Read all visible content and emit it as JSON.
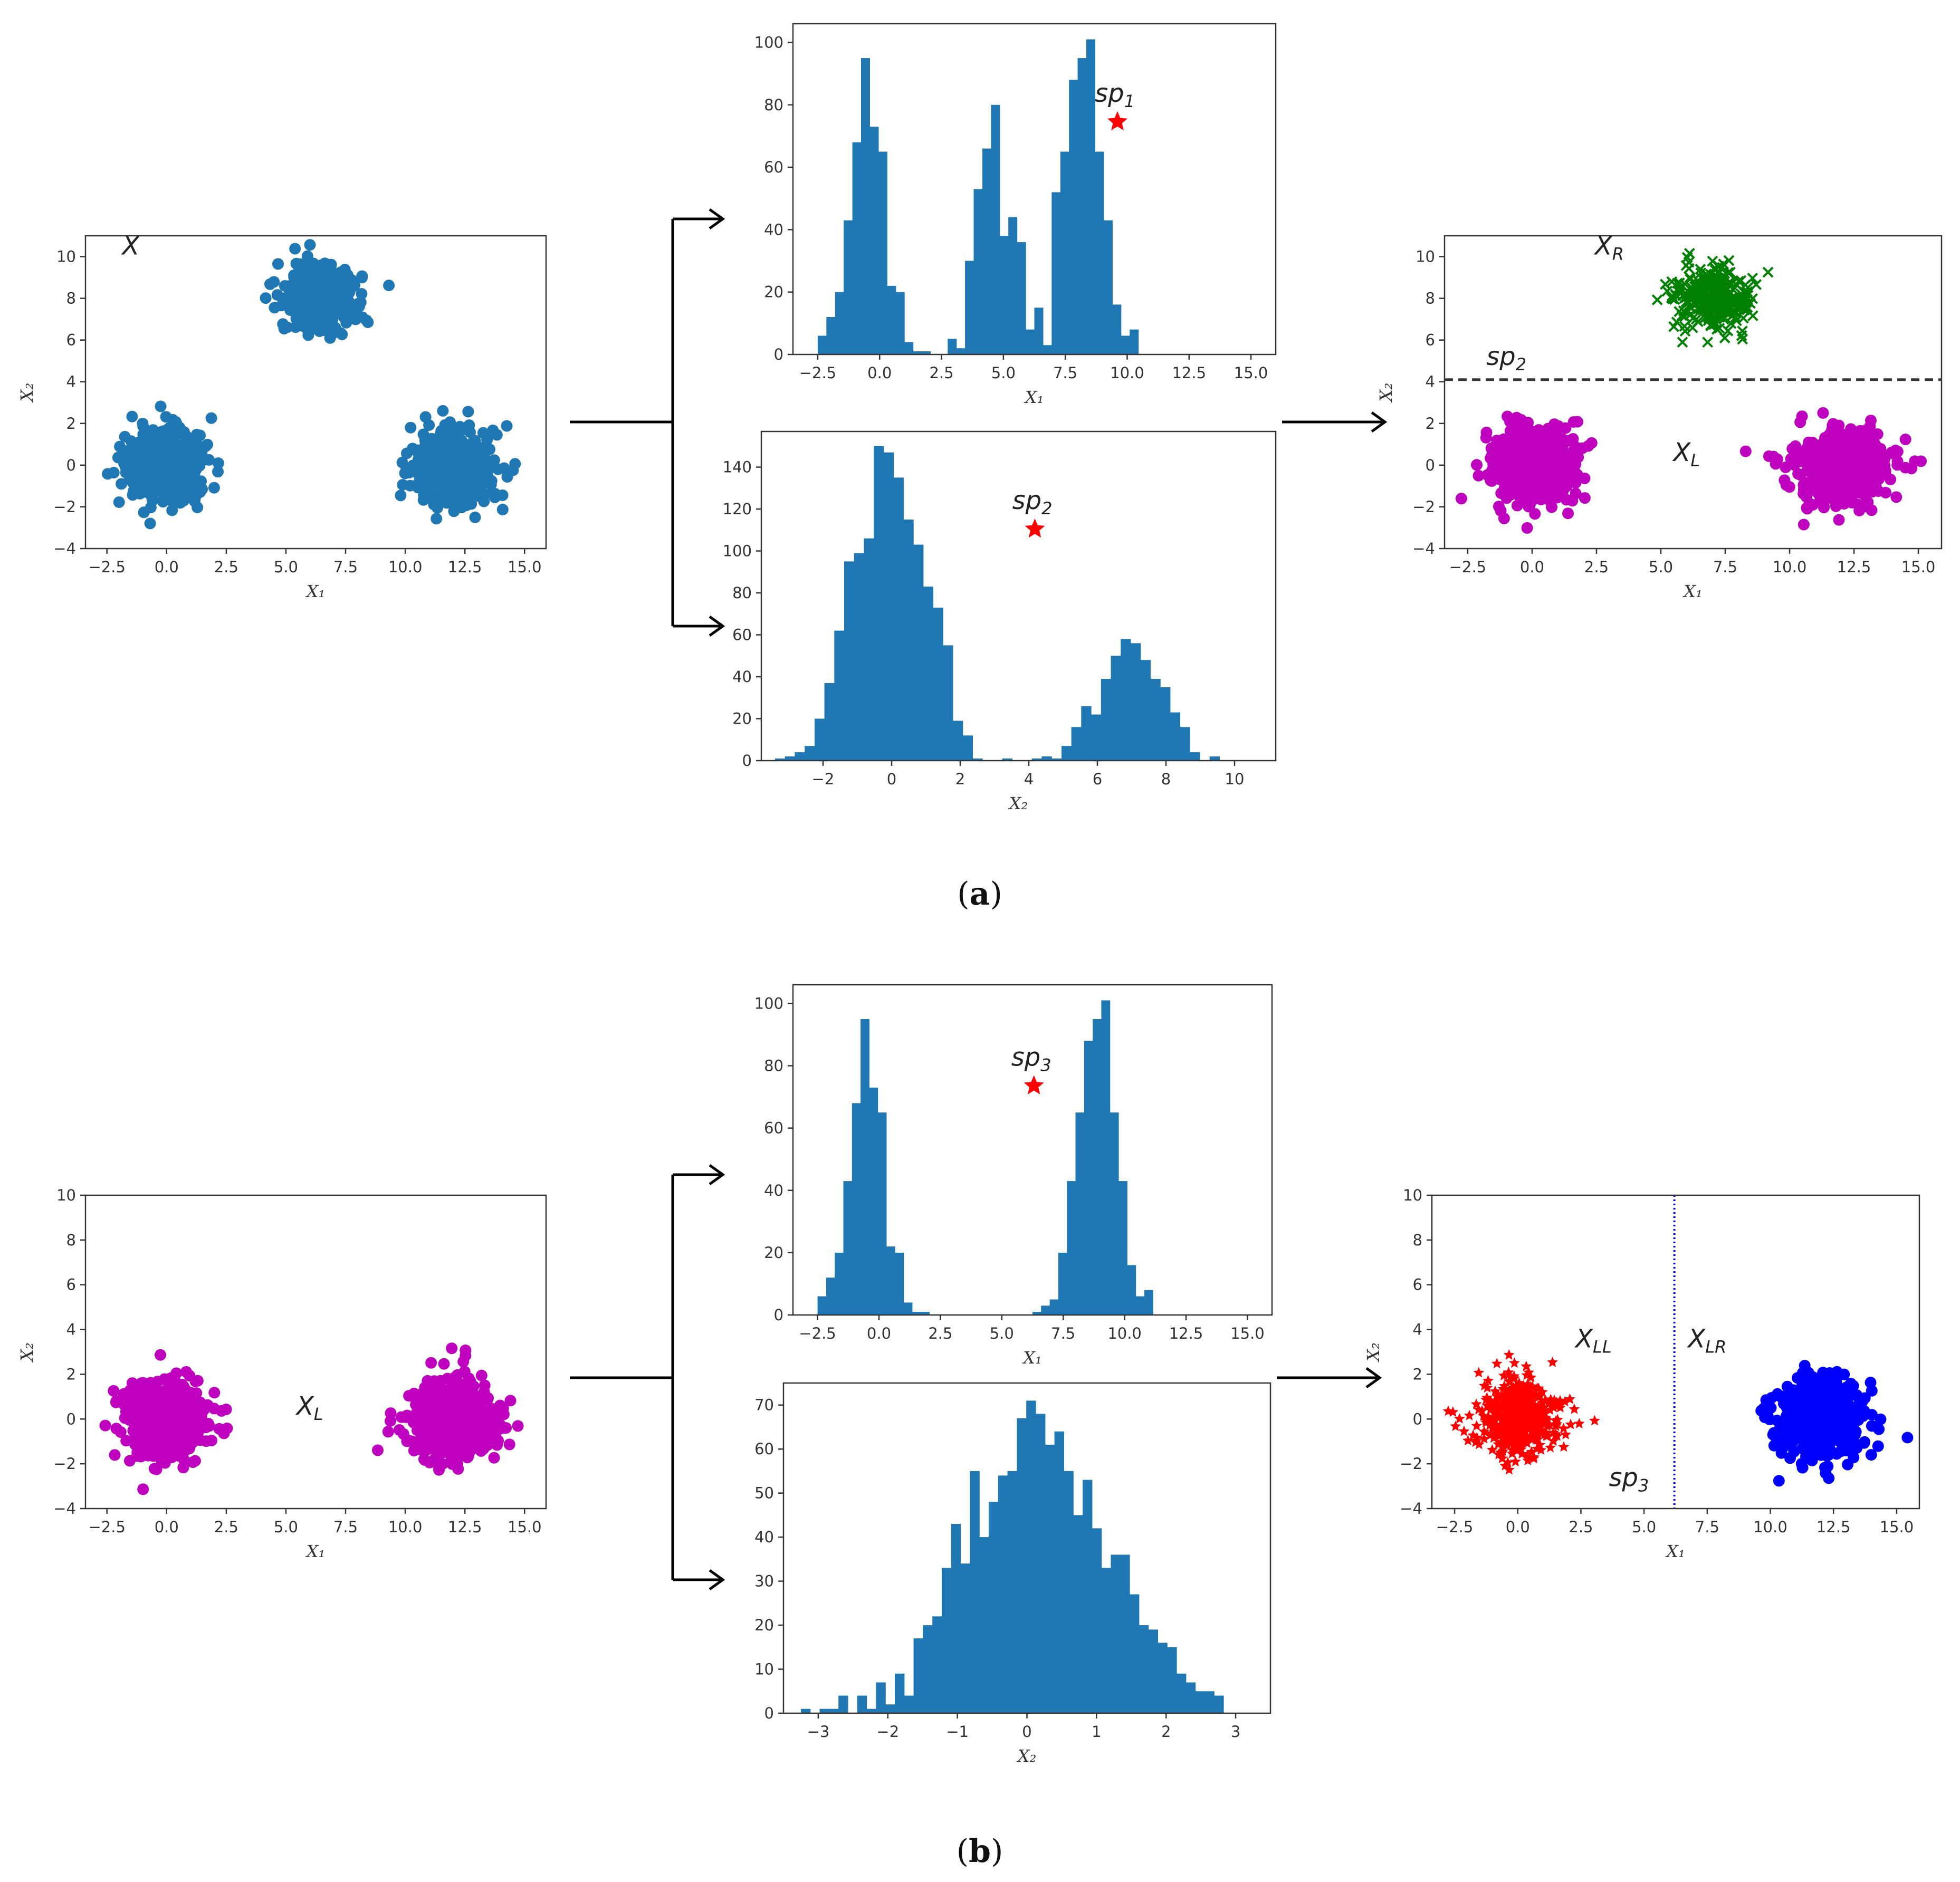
{
  "figure": {
    "caption_a": "a",
    "caption_b": "b"
  },
  "colors": {
    "hist": "#1f77b4",
    "scatter_blue": "#1f77b4",
    "magenta": "#bf00bf",
    "green": "#008000",
    "red": "#ff0000",
    "blue": "#0000ff",
    "star": "#ff0000"
  },
  "chart_data": [
    {
      "id": "a1-scatter",
      "type": "scatter",
      "panel": "a",
      "title": "",
      "xlabel": "X₁",
      "ylabel": "X₂",
      "xlim": [
        -3.4,
        15.9
      ],
      "ylim": [
        -4,
        11
      ],
      "xticks": [
        -2.5,
        0.0,
        2.5,
        5.0,
        7.5,
        10.0,
        12.5,
        15.0
      ],
      "yticks": [
        -4,
        -2,
        0,
        2,
        4,
        6,
        8,
        10
      ],
      "annotations": [
        {
          "text": "X",
          "sub": "",
          "x": -1.5,
          "y": 10.1
        }
      ],
      "series": [
        {
          "marker": "circle",
          "color": "#1f77b4",
          "clusters": [
            {
              "cx": 0.0,
              "cy": 0.0,
              "spread": 0.85,
              "n": 500
            },
            {
              "cx": 6.5,
              "cy": 8.0,
              "spread": 0.75,
              "n": 400
            },
            {
              "cx": 12.0,
              "cy": 0.0,
              "spread": 0.9,
              "n": 500
            }
          ]
        }
      ]
    },
    {
      "id": "a2-hist-x1",
      "type": "bar",
      "panel": "a",
      "title": "",
      "xlabel": "X₁",
      "ylabel": "",
      "xlim": [
        -3.5,
        16.0
      ],
      "ylim": [
        0,
        106
      ],
      "xticks": [
        -2.5,
        0.0,
        2.5,
        5.0,
        7.5,
        10.0,
        12.5,
        15.0
      ],
      "yticks": [
        0,
        20,
        40,
        60,
        80,
        100
      ],
      "bin_start": -2.5,
      "bin_width": 0.35,
      "values": [
        6,
        12,
        20,
        43,
        68,
        95,
        73,
        65,
        22,
        20,
        4,
        1,
        1,
        0,
        0,
        5,
        2,
        30,
        53,
        66,
        80,
        38,
        44,
        36,
        8,
        15,
        3,
        52,
        65,
        88,
        95,
        101,
        65,
        43,
        16,
        6,
        8
      ],
      "annotations": [
        {
          "text": "sp",
          "sub": "1",
          "x": 9.5,
          "y": 81,
          "marker": "star"
        }
      ]
    },
    {
      "id": "a3-hist-x2",
      "type": "bar",
      "panel": "a",
      "title": "",
      "xlabel": "X₂",
      "ylabel": "",
      "xlim": [
        -3.8,
        11.2
      ],
      "ylim": [
        0,
        157
      ],
      "xticks": [
        -2,
        0,
        2,
        4,
        6,
        8,
        10
      ],
      "yticks": [
        0,
        20,
        40,
        60,
        80,
        100,
        120,
        140
      ],
      "bin_start": -3.4,
      "bin_width": 0.288,
      "values": [
        1,
        2,
        4,
        7,
        20,
        37,
        62,
        95,
        99,
        106,
        150,
        147,
        135,
        115,
        103,
        83,
        73,
        55,
        19,
        12,
        1,
        0,
        0,
        1,
        0,
        0,
        1,
        2,
        1,
        7,
        16,
        26,
        22,
        39,
        50,
        58,
        56,
        48,
        39,
        35,
        23,
        16,
        4,
        0,
        2
      ],
      "annotations": [
        {
          "text": "sp",
          "sub": "2",
          "x": 4.1,
          "y": 120,
          "marker": "star"
        }
      ]
    },
    {
      "id": "a4-scatter-split",
      "type": "scatter",
      "panel": "a",
      "title": "",
      "xlabel": "X₁",
      "ylabel": "X₂",
      "xlim": [
        -3.4,
        15.9
      ],
      "ylim": [
        -4,
        11
      ],
      "xticks": [
        -2.5,
        0.0,
        2.5,
        5.0,
        7.5,
        10.0,
        12.5,
        15.0
      ],
      "yticks": [
        -4,
        -2,
        0,
        2,
        4,
        6,
        8,
        10
      ],
      "split": {
        "orientation": "horizontal",
        "value": 4.1,
        "style": "dashed",
        "color": "#333"
      },
      "annotations": [
        {
          "text": "X",
          "sub": "R",
          "x": 3.0,
          "y": 10.1
        },
        {
          "text": "sp",
          "sub": "2",
          "x": -1.0,
          "y": 4.8
        },
        {
          "text": "X",
          "sub": "L",
          "x": 6.0,
          "y": 0.2
        }
      ],
      "series": [
        {
          "name": "",
          "marker": "x",
          "color": "#008000",
          "clusters": [
            {
              "cx": 7.0,
              "cy": 8.0,
              "spread": 0.75,
              "n": 300
            }
          ]
        },
        {
          "name": "",
          "marker": "circle",
          "color": "#bf00bf",
          "clusters": [
            {
              "cx": 0.0,
              "cy": 0.0,
              "spread": 0.85,
              "n": 500
            },
            {
              "cx": 12.0,
              "cy": 0.0,
              "spread": 0.9,
              "n": 500
            }
          ]
        }
      ]
    },
    {
      "id": "b1-scatter",
      "type": "scatter",
      "panel": "b",
      "title": "",
      "xlabel": "X₁",
      "ylabel": "X₂",
      "xlim": [
        -3.4,
        15.9
      ],
      "ylim": [
        -4,
        10
      ],
      "xticks": [
        -2.5,
        0.0,
        2.5,
        5.0,
        7.5,
        10.0,
        12.5,
        15.0
      ],
      "yticks": [
        -4,
        -2,
        0,
        2,
        4,
        6,
        8,
        10
      ],
      "annotations": [
        {
          "text": "X",
          "sub": "L",
          "x": 6.0,
          "y": 0.2
        }
      ],
      "series": [
        {
          "marker": "circle",
          "color": "#bf00bf",
          "clusters": [
            {
              "cx": 0.0,
              "cy": 0.0,
              "spread": 0.85,
              "n": 500
            },
            {
              "cx": 12.0,
              "cy": 0.0,
              "spread": 0.9,
              "n": 500
            }
          ]
        }
      ]
    },
    {
      "id": "b2-hist-x1",
      "type": "bar",
      "panel": "b",
      "title": "",
      "xlabel": "X₁",
      "ylabel": "",
      "xlim": [
        -3.5,
        16.0
      ],
      "ylim": [
        0,
        106
      ],
      "xticks": [
        -2.5,
        0.0,
        2.5,
        5.0,
        7.5,
        10.0,
        12.5,
        15.0
      ],
      "yticks": [
        0,
        20,
        40,
        60,
        80,
        100
      ],
      "bin_start": -2.5,
      "bin_width": 0.35,
      "values": [
        6,
        12,
        20,
        43,
        68,
        95,
        73,
        65,
        22,
        20,
        4,
        1,
        1,
        0,
        0,
        0,
        0,
        0,
        0,
        0,
        0,
        0,
        0,
        0,
        0,
        1,
        3,
        5,
        20,
        43,
        65,
        88,
        95,
        101,
        65,
        43,
        16,
        6,
        8
      ],
      "annotations": [
        {
          "text": "sp",
          "sub": "3",
          "x": 6.2,
          "y": 80,
          "marker": "star"
        }
      ]
    },
    {
      "id": "b3-hist-x2",
      "type": "bar",
      "panel": "b",
      "title": "",
      "xlabel": "X₂",
      "ylabel": "",
      "xlim": [
        -3.5,
        3.5
      ],
      "ylim": [
        0,
        75
      ],
      "xticks": [
        -3,
        -2,
        -1,
        0,
        1,
        2,
        3
      ],
      "yticks": [
        0,
        10,
        20,
        30,
        40,
        50,
        60,
        70
      ],
      "bin_start": -3.25,
      "bin_width": 0.135,
      "values": [
        1,
        0,
        1,
        1,
        4,
        0,
        4,
        1,
        7,
        2,
        9,
        4,
        17,
        20,
        22,
        33,
        43,
        34,
        55,
        40,
        48,
        54,
        55,
        67,
        71,
        68,
        61,
        64,
        55,
        45,
        53,
        42,
        33,
        36,
        36,
        27,
        20,
        19,
        16,
        15,
        9,
        7,
        5,
        5,
        4,
        0,
        0,
        0,
        0,
        0,
        0,
        1
      ],
      "annotations": []
    },
    {
      "id": "b4-scatter-split",
      "type": "scatter",
      "panel": "b",
      "title": "",
      "xlabel": "X₁",
      "ylabel": "X₂",
      "xlim": [
        -3.4,
        15.9
      ],
      "ylim": [
        -4,
        10
      ],
      "xticks": [
        -2.5,
        0.0,
        2.5,
        5.0,
        7.5,
        10.0,
        12.5,
        15.0
      ],
      "yticks": [
        -4,
        -2,
        0,
        2,
        4,
        6,
        8,
        10
      ],
      "split": {
        "orientation": "vertical",
        "value": 6.2,
        "style": "dotted",
        "color": "#0000ff"
      },
      "annotations": [
        {
          "text": "X",
          "sub": "LL",
          "x": 3.0,
          "y": 3.2
        },
        {
          "text": "X",
          "sub": "LR",
          "x": 7.5,
          "y": 3.2
        },
        {
          "text": "sp",
          "sub": "3",
          "x": 4.4,
          "y": -3.0
        }
      ],
      "series": [
        {
          "name": "",
          "marker": "star",
          "color": "#ff0000",
          "clusters": [
            {
              "cx": 0.0,
              "cy": 0.0,
              "spread": 0.85,
              "n": 450
            }
          ]
        },
        {
          "name": "",
          "marker": "circle",
          "color": "#0000ff",
          "clusters": [
            {
              "cx": 12.0,
              "cy": 0.0,
              "spread": 0.9,
              "n": 500
            }
          ]
        }
      ]
    }
  ]
}
